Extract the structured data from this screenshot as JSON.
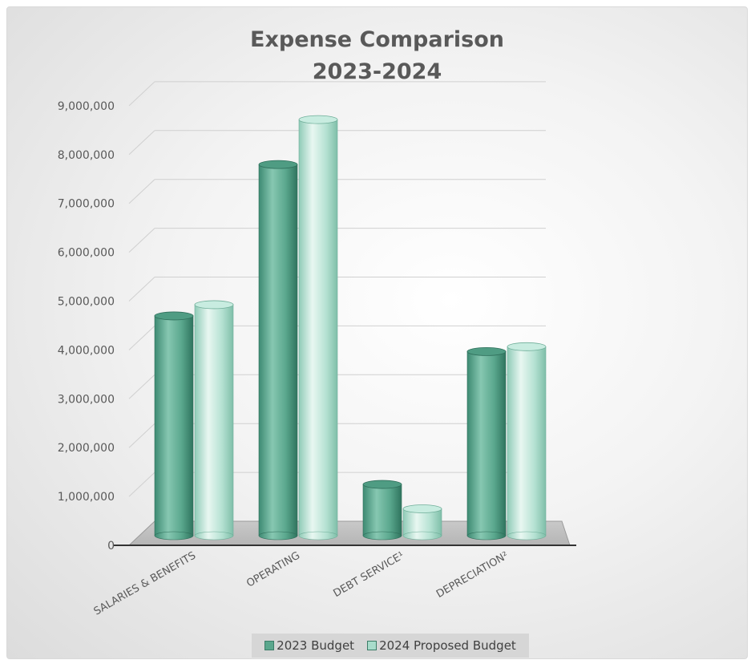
{
  "chart_data": {
    "type": "bar",
    "title": "Expense Comparison",
    "subtitle": "2023-2024",
    "categories": [
      "SALARIES & BENEFITS",
      "OPERATING",
      "DEBT SERVICE¹",
      "DEPRECIATION²"
    ],
    "series": [
      {
        "name": "2023 Budget",
        "values": [
          4500000,
          7600000,
          1050000,
          3770000
        ],
        "color": "#5aa78d"
      },
      {
        "name": "2024 Proposed Budget",
        "values": [
          4730000,
          8520000,
          550000,
          3870000
        ],
        "color": "#a8dccb"
      }
    ],
    "y_ticks": [
      "0",
      "1,000,000",
      "2,000,000",
      "3,000,000",
      "4,000,000",
      "5,000,000",
      "6,000,000",
      "7,000,000",
      "8,000,000",
      "9,000,000"
    ],
    "ylim": [
      0,
      9000000
    ],
    "grid": true,
    "legend_position": "bottom",
    "style": "3d-cylinder"
  }
}
